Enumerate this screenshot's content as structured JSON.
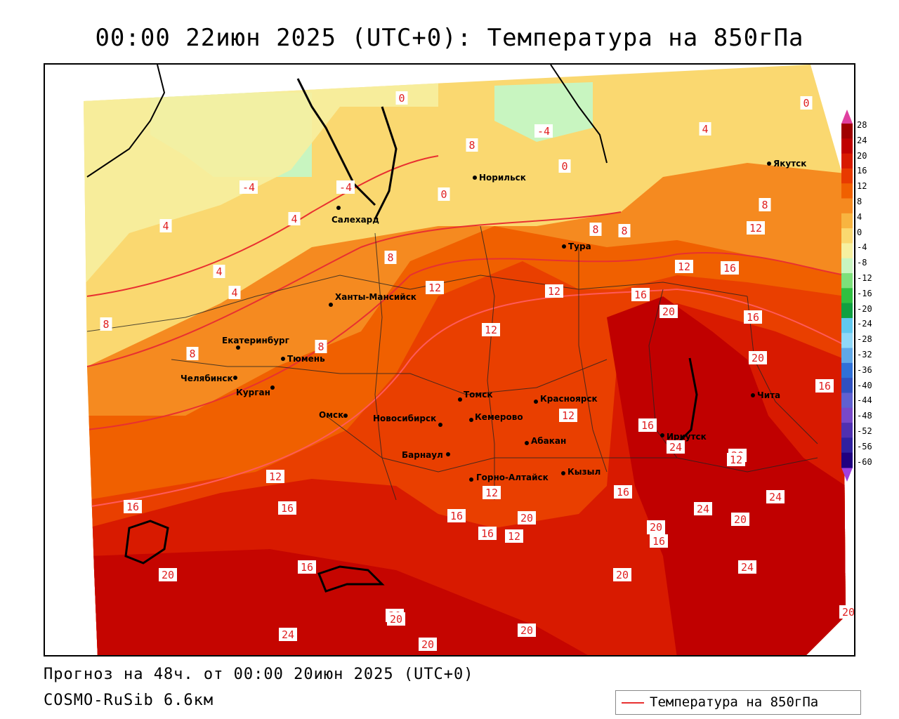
{
  "title": "00:00 22июн 2025 (UTC+0): Температура на 850гПа",
  "footer": {
    "forecast": "Прогноз на 48ч. от 00:00 20июн 2025 (UTC+0)",
    "model": "COSMO-RuSib 6.6км"
  },
  "legend": {
    "label": "Температура на 850гПа",
    "line_color": "#e83030"
  },
  "colorbar": {
    "labels": [
      "28",
      "24",
      "20",
      "16",
      "12",
      "8",
      "4",
      "0",
      "-4",
      "-8",
      "-12",
      "-16",
      "-20",
      "-24",
      "-28",
      "-32",
      "-36",
      "-40",
      "-44",
      "-48",
      "-52",
      "-56",
      "-60"
    ],
    "colors": [
      "#a00000",
      "#c00000",
      "#d81a00",
      "#e83a00",
      "#f06000",
      "#f58a20",
      "#f8b440",
      "#fad870",
      "#f6f0a0",
      "#c8f5c0",
      "#7de07a",
      "#30c040",
      "#10a040",
      "#60c8f0",
      "#90d8f8",
      "#60a8e8",
      "#3070d8",
      "#3050c0",
      "#6060d0",
      "#7848c8",
      "#5030b0",
      "#3020a0",
      "#200080"
    ],
    "arrow_top_color": "#e040a0",
    "arrow_bottom_color": "#a040e0"
  },
  "cities": [
    {
      "name": "Норильск"
    },
    {
      "name": "Якутск"
    },
    {
      "name": "Салехард"
    },
    {
      "name": "Тура"
    },
    {
      "name": "Ханты-Мансийск"
    },
    {
      "name": "Екатеринбург"
    },
    {
      "name": "Тюмень"
    },
    {
      "name": "Челябинск"
    },
    {
      "name": "Курган"
    },
    {
      "name": "Омск"
    },
    {
      "name": "Новосибирск"
    },
    {
      "name": "Томск"
    },
    {
      "name": "Кемерово"
    },
    {
      "name": "Красноярск"
    },
    {
      "name": "Барнаул"
    },
    {
      "name": "Абакан"
    },
    {
      "name": "Горно-Алтайск"
    },
    {
      "name": "Кызыл"
    },
    {
      "name": "Иркутск"
    },
    {
      "name": "Чита"
    }
  ],
  "contour_labels": [
    "0",
    "-4",
    "8",
    "4",
    "0",
    "-4",
    "-4",
    "0",
    "4",
    "4",
    "0",
    "8",
    "8",
    "8",
    "12",
    "4",
    "4",
    "8",
    "12",
    "12",
    "16",
    "12",
    "16",
    "20",
    "16",
    "8",
    "8",
    "8",
    "12",
    "12",
    "20",
    "16",
    "16",
    "16",
    "12",
    "16",
    "16",
    "20",
    "24",
    "16",
    "12",
    "16",
    "20",
    "12",
    "12",
    "24",
    "20",
    "24",
    "12",
    "20",
    "16",
    "20",
    "20",
    "24",
    "20",
    "20",
    "20",
    "24",
    "16",
    "20",
    "20"
  ]
}
